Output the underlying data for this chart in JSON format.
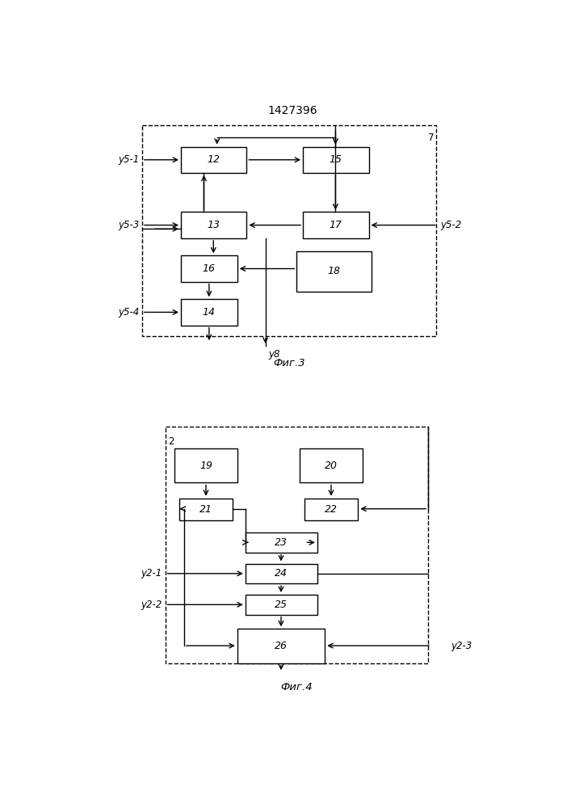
{
  "title": "1427396",
  "fig3_label": "Фиг.3",
  "fig4_label": "Фиг.4",
  "background": "#ffffff"
}
